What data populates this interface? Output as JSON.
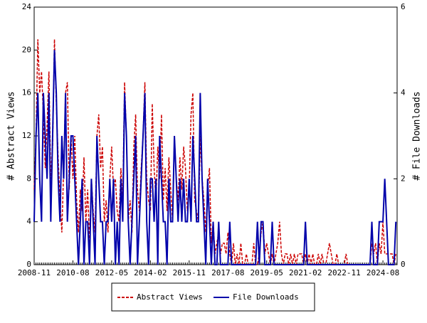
{
  "chart_data": {
    "type": "line",
    "ylabel": "# Abstract Views",
    "y2label": "# File Downloads",
    "categories": [
      "2008-11",
      null,
      null,
      null,
      null,
      null,
      null,
      null,
      null,
      null,
      null,
      null,
      null,
      null,
      null,
      null,
      null,
      null,
      null,
      null,
      null,
      "2010-08",
      null,
      null,
      null,
      null,
      null,
      null,
      null,
      null,
      null,
      null,
      null,
      null,
      null,
      null,
      null,
      null,
      null,
      null,
      null,
      null,
      "2012-05",
      null,
      null,
      null,
      null,
      null,
      null,
      null,
      null,
      null,
      null,
      null,
      null,
      null,
      null,
      null,
      null,
      null,
      null,
      null,
      null,
      "2014-02",
      null,
      null,
      null,
      null,
      null,
      null,
      null,
      null,
      null,
      null,
      null,
      null,
      null,
      null,
      null,
      null,
      null,
      null,
      null,
      null,
      "2015-11",
      null,
      null,
      null,
      null,
      null,
      null,
      null,
      null,
      null,
      null,
      null,
      null,
      null,
      null,
      null,
      null,
      null,
      null,
      null,
      null,
      "2017-08",
      null,
      null,
      null,
      null,
      null,
      null,
      null,
      null,
      null,
      null,
      null,
      null,
      null,
      null,
      null,
      null,
      null,
      null,
      null,
      null,
      "2019-05",
      null,
      null,
      null,
      null,
      null,
      null,
      null,
      null,
      null,
      null,
      null,
      null,
      null,
      null,
      null,
      null,
      null,
      null,
      null,
      null,
      "2021-02",
      null,
      null,
      null,
      null,
      null,
      null,
      null,
      null,
      null,
      null,
      null,
      null,
      null,
      null,
      null,
      null,
      null,
      null,
      null,
      null,
      "2022-11",
      null,
      null,
      null,
      null,
      null,
      null,
      null,
      null,
      null,
      null,
      null,
      null,
      null,
      null,
      null,
      null,
      null,
      null,
      null,
      null,
      "2024-08",
      null,
      null,
      null,
      null,
      null,
      null,
      null
    ],
    "series": [
      {
        "name": "Abstract Views",
        "color": "#cc0000",
        "dash": true,
        "values": [
          7,
          12,
          21,
          16,
          18,
          14,
          9,
          13,
          18,
          8,
          11,
          21,
          15,
          10,
          6,
          3,
          9,
          16,
          17,
          7,
          12,
          8,
          12,
          6,
          3,
          7,
          5,
          10,
          4,
          7,
          2,
          8,
          5,
          3,
          12,
          14,
          9,
          11,
          4,
          6,
          3,
          8,
          11,
          7,
          8,
          5,
          4,
          9,
          6,
          17,
          12,
          4,
          6,
          3,
          11,
          14,
          7,
          5,
          9,
          12,
          17,
          8,
          6,
          5,
          15,
          9,
          6,
          11,
          8,
          14,
          6,
          9,
          5,
          10,
          7,
          4,
          12,
          8,
          6,
          10,
          7,
          11,
          9,
          5,
          7,
          14,
          16,
          6,
          5,
          4,
          12,
          8,
          6,
          3,
          7,
          9,
          2,
          4,
          1,
          2,
          3,
          1,
          2,
          2,
          1,
          3,
          1,
          0,
          2,
          0,
          1,
          0,
          2,
          0,
          0,
          1,
          0,
          0,
          0,
          2,
          0,
          0,
          1,
          3,
          4,
          1,
          2,
          1,
          0,
          1,
          0,
          1,
          2,
          4,
          1,
          0,
          1,
          1,
          0,
          1,
          0,
          1,
          0,
          1,
          1,
          1,
          0,
          1,
          0,
          1,
          0,
          1,
          0,
          0,
          1,
          0,
          1,
          0,
          0,
          1,
          2,
          1,
          0,
          0,
          1,
          0,
          0,
          0,
          0,
          1,
          0,
          0,
          0,
          0,
          0,
          0,
          0,
          0,
          0,
          0,
          0,
          0,
          0,
          2,
          1,
          2,
          0,
          2,
          1,
          4,
          1,
          1,
          1,
          1,
          1,
          0,
          1
        ]
      },
      {
        "name": "File Downloads",
        "color": "#0000aa",
        "dash": false,
        "axis": "y2",
        "values": [
          1,
          3,
          4,
          2,
          1,
          4,
          3,
          2,
          4,
          1,
          3,
          5,
          4,
          2,
          1,
          3,
          2,
          4,
          1,
          2,
          3,
          3,
          2,
          1,
          0,
          1,
          2,
          0,
          1,
          1,
          0,
          2,
          1,
          0,
          3,
          2,
          1,
          1,
          0,
          1,
          1,
          2,
          1,
          2,
          0,
          1,
          0,
          2,
          1,
          4,
          3,
          1,
          0,
          1,
          2,
          3,
          0,
          1,
          2,
          3,
          4,
          1,
          0,
          2,
          2,
          1,
          2,
          0,
          3,
          2,
          1,
          1,
          0,
          2,
          1,
          1,
          3,
          2,
          1,
          2,
          1,
          2,
          1,
          1,
          2,
          1,
          3,
          2,
          1,
          1,
          4,
          2,
          1,
          0,
          2,
          1,
          0,
          1,
          0,
          0,
          1,
          0,
          0,
          0,
          0,
          0,
          1,
          0,
          0,
          0,
          0,
          0,
          0,
          0,
          0,
          0,
          0,
          0,
          0,
          0,
          0,
          1,
          0,
          1,
          1,
          0,
          0,
          0,
          0,
          1,
          0,
          0,
          0,
          0,
          0,
          0,
          0,
          0,
          0,
          0,
          0,
          0,
          0,
          0,
          0,
          0,
          0,
          1,
          0,
          0,
          0,
          0,
          0,
          0,
          0,
          0,
          0,
          0,
          0,
          0,
          0,
          0,
          0,
          0,
          0,
          0,
          0,
          0,
          0,
          0,
          0,
          0,
          0,
          0,
          0,
          0,
          0,
          0,
          0,
          0,
          0,
          0,
          0,
          1,
          0,
          0,
          0,
          1,
          1,
          1,
          2,
          1,
          0,
          0,
          0,
          0,
          1
        ]
      }
    ],
    "ylim": [
      0,
      24
    ],
    "yticks": [
      0,
      4,
      8,
      12,
      16,
      20,
      24
    ],
    "y2lim": [
      0,
      6
    ],
    "y2ticks": [
      0,
      2,
      4,
      6
    ],
    "legend": "bottom"
  }
}
